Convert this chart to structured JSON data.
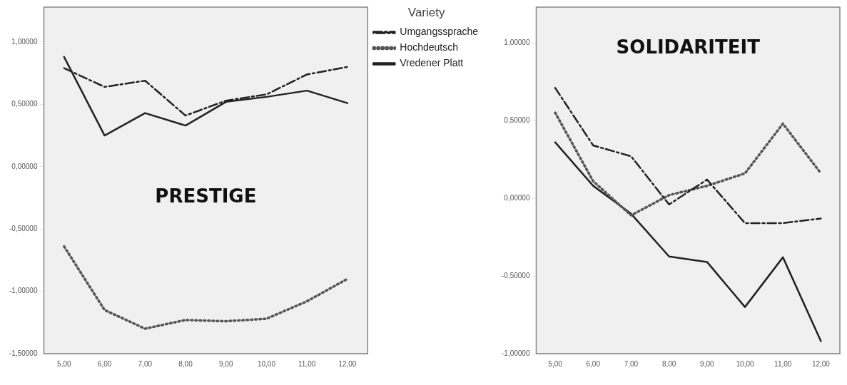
{
  "chart_data": [
    {
      "type": "line",
      "title": "PRESTIGE",
      "legend_title": "Variety",
      "legend": "right",
      "grid": false,
      "categories": [
        "5,00",
        "6,00",
        "7,00",
        "8,00",
        "9,00",
        "10,00",
        "11,00",
        "12,00"
      ],
      "ylim": [
        -1.5,
        1.28
      ],
      "yticks": [
        {
          "value": -1.5,
          "label": "-1,50000"
        },
        {
          "value": -1,
          "label": "-1,00000"
        },
        {
          "value": -0.5,
          "label": "-0,50000"
        },
        {
          "value": 0,
          "label": "0,00000"
        },
        {
          "value": 0.5,
          "label": "0,50000"
        },
        {
          "value": 1,
          "label": "1,00000"
        }
      ],
      "series": [
        {
          "name": "Umgangssprache",
          "color": "#222222",
          "line_style": "dashed",
          "values": [
            0.79,
            0.64,
            0.69,
            0.41,
            0.53,
            0.58,
            0.74,
            0.8
          ]
        },
        {
          "name": "Hochdeutsch",
          "color": "#555555",
          "line_style": "dotted",
          "values": [
            -0.64,
            -1.15,
            -1.3,
            -1.23,
            -1.24,
            -1.22,
            -1.08,
            -0.9
          ]
        },
        {
          "name": "Vredener Platt",
          "color": "#222222",
          "line_style": "solid",
          "values": [
            0.88,
            0.25,
            0.43,
            0.33,
            0.52,
            0.56,
            0.61,
            0.51
          ]
        }
      ]
    },
    {
      "type": "line",
      "title": "SOLIDARITEIT",
      "legend": false,
      "grid": false,
      "categories": [
        "5,00",
        "6,00",
        "7,00",
        "8,00",
        "9,00",
        "10,00",
        "11,00",
        "12,00"
      ],
      "ylim": [
        -1,
        1.23
      ],
      "yticks": [
        {
          "value": -1,
          "label": "-1,00000"
        },
        {
          "value": -0.5,
          "label": "-0,50000"
        },
        {
          "value": 0,
          "label": "0,00000"
        },
        {
          "value": 0.5,
          "label": "0,50000"
        },
        {
          "value": 1,
          "label": "1,00000"
        }
      ],
      "series": [
        {
          "color": "#222222",
          "line_style": "dashed",
          "values": [
            0.71,
            0.34,
            0.27,
            -0.04,
            0.12,
            -0.16,
            -0.16,
            -0.13
          ]
        },
        {
          "color": "#555555",
          "line_style": "dotted",
          "values": [
            0.55,
            0.11,
            -0.11,
            0.02,
            0.08,
            0.16,
            0.48,
            0.16
          ]
        },
        {
          "color": "#222222",
          "line_style": "solid",
          "values": [
            0.36,
            0.08,
            -0.1,
            -0.375,
            -0.41,
            -0.7,
            -0.38,
            -0.92
          ]
        }
      ]
    }
  ]
}
